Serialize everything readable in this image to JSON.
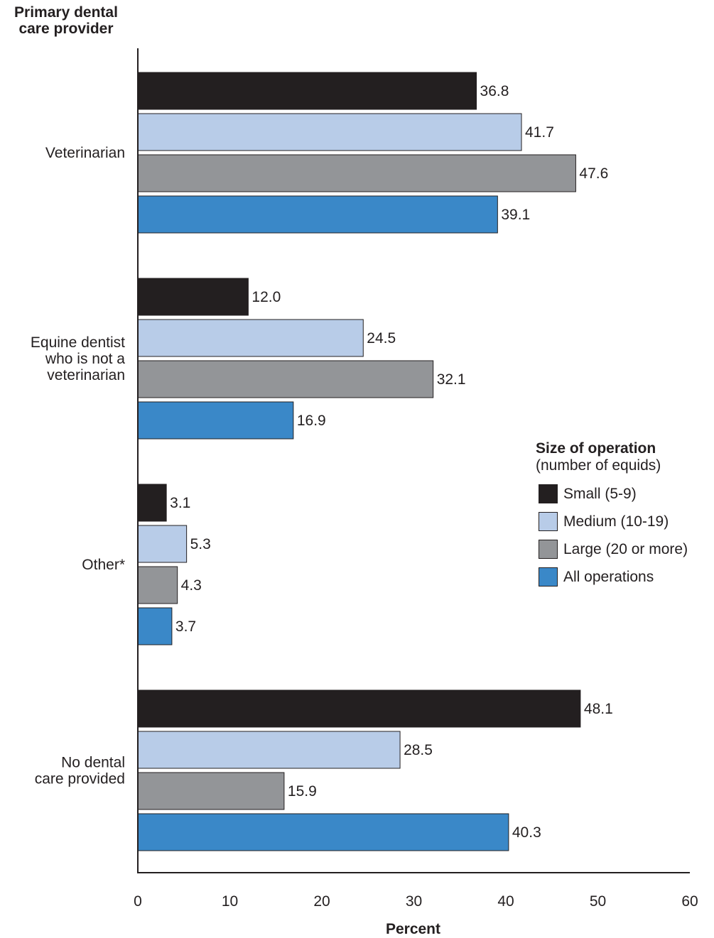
{
  "chart_data": {
    "type": "bar",
    "orientation": "horizontal",
    "y_title_lines": [
      "Primary dental",
      "care provider"
    ],
    "xlabel": "Percent",
    "xlim": [
      0,
      60
    ],
    "xticks": [
      0,
      10,
      20,
      30,
      40,
      50,
      60
    ],
    "categories": [
      [
        "Veterinarian"
      ],
      [
        "Equine dentist",
        "who is not a",
        "veterinarian"
      ],
      [
        "Other*"
      ],
      [
        "No dental",
        "care provided"
      ]
    ],
    "series": [
      {
        "name": "Small (5-9)",
        "color": "#231f20",
        "values": [
          36.8,
          12.0,
          3.1,
          48.1
        ],
        "labels": [
          "36.8",
          "12.0",
          "3.1",
          "48.1"
        ]
      },
      {
        "name": "Medium (10-19)",
        "color": "#b8cce8",
        "values": [
          41.7,
          24.5,
          5.3,
          28.5
        ],
        "labels": [
          "41.7",
          "24.5",
          "5.3",
          "28.5"
        ]
      },
      {
        "name": "Large (20 or more)",
        "color": "#939598",
        "values": [
          47.6,
          32.1,
          4.3,
          15.9
        ],
        "labels": [
          "47.6",
          "32.1",
          "4.3",
          "15.9"
        ]
      },
      {
        "name": "All operations",
        "color": "#3a88c8",
        "values": [
          39.1,
          16.9,
          3.7,
          40.3
        ],
        "labels": [
          "39.1",
          "16.9",
          "3.7",
          "40.3"
        ]
      }
    ],
    "legend": {
      "title": "Size of operation",
      "subtitle": "(number of equids)",
      "placement": "right"
    },
    "grid": false
  }
}
